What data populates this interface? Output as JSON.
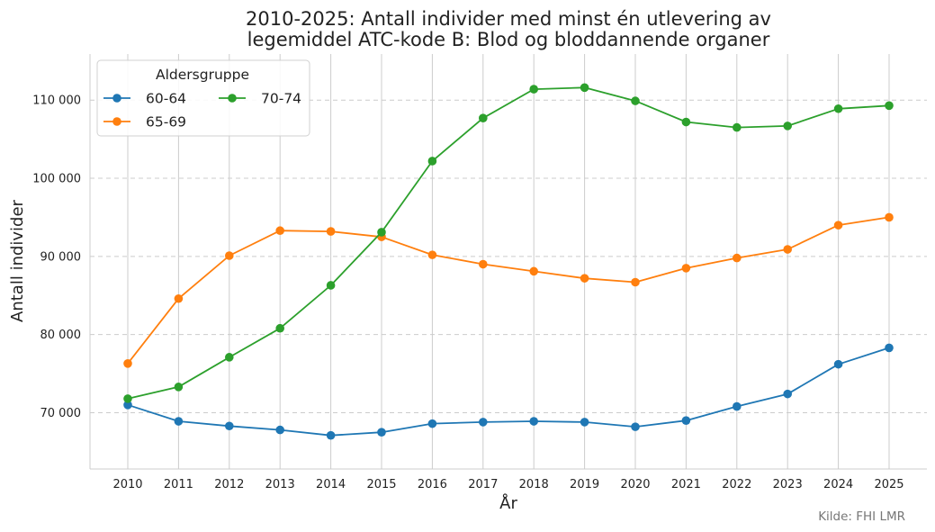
{
  "chart_data": {
    "type": "line",
    "title_line1": "2010-2025: Antall individer med minst én utlevering av",
    "title_line2": "legemiddel ATC-kode B: Blod og bloddannende organer",
    "xlabel": "År",
    "ylabel": "Antall individer",
    "source": "Kilde: FHI LMR",
    "legend_title": "Aldersgruppe",
    "legend_position": "top-left",
    "x": [
      2010,
      2011,
      2012,
      2013,
      2014,
      2015,
      2016,
      2017,
      2018,
      2019,
      2020,
      2021,
      2022,
      2023,
      2024,
      2025
    ],
    "x_tick_labels": [
      "2010",
      "2011",
      "2012",
      "2013",
      "2014",
      "2015",
      "2016",
      "2017",
      "2018",
      "2019",
      "2020",
      "2021",
      "2022",
      "2023",
      "2024",
      "2025"
    ],
    "ylim": [
      62800,
      115900
    ],
    "y_ticks": [
      70000,
      80000,
      90000,
      100000,
      110000
    ],
    "y_tick_labels": [
      "70 000",
      "80 000",
      "90 000",
      "100 000",
      "110 000"
    ],
    "grid": {
      "x": true,
      "y": true,
      "y_dashed": true
    },
    "series": [
      {
        "name": "60-64",
        "color": "#1f77b4",
        "values": [
          71000,
          68900,
          68300,
          67800,
          67100,
          67500,
          68600,
          68800,
          68900,
          68800,
          68200,
          69000,
          70800,
          72400,
          76200,
          78300
        ]
      },
      {
        "name": "65-69",
        "color": "#ff7f0e",
        "values": [
          76300,
          84600,
          90100,
          93300,
          93200,
          92500,
          90200,
          89000,
          88100,
          87200,
          86700,
          88500,
          89800,
          90900,
          94000,
          95000
        ]
      },
      {
        "name": "70-74",
        "color": "#2ca02c",
        "values": [
          71800,
          73300,
          77100,
          80800,
          86300,
          93100,
          102200,
          107700,
          111400,
          111600,
          109900,
          107200,
          106500,
          106700,
          108900,
          109300
        ]
      }
    ]
  }
}
